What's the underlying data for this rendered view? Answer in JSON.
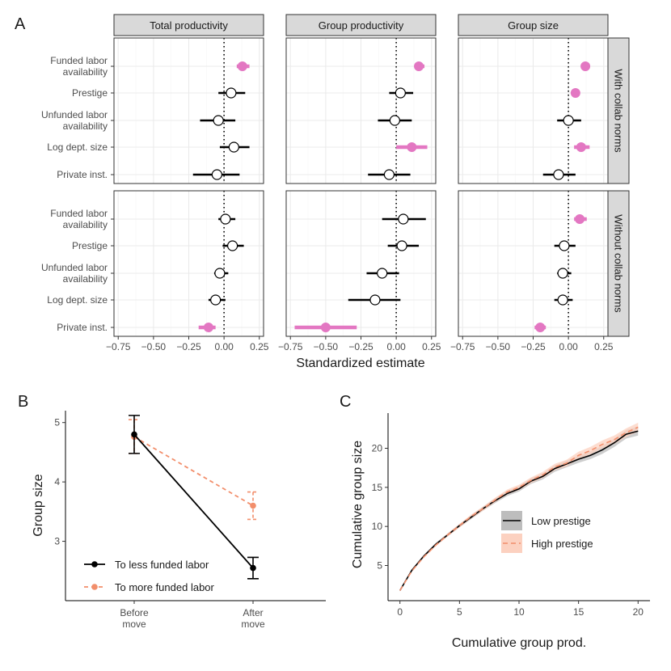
{
  "colors": {
    "significant": "#e377c2",
    "nonsignificant": "#000000",
    "strip": "#d9d9d9",
    "panel_bg": "#ffffff",
    "grid_major": "#ebebeb",
    "grid_minor": "#f5f5f5",
    "less_funded": "#000000",
    "more_funded": "#f28e6b",
    "low_prestige": "#000000",
    "low_prestige_ribbon": "#bdbdbd",
    "high_prestige": "#f28e6b",
    "high_prestige_ribbon": "#fcd1c0"
  },
  "chart_data": [
    {
      "panel_label": "A",
      "type": "scatter",
      "title": "",
      "xlabel": "Standardized estimate",
      "xlim": [
        -0.78,
        0.28
      ],
      "x_ticks": [
        -0.75,
        -0.5,
        -0.25,
        0.0,
        0.25
      ],
      "x_tick_labels": [
        "−0.75",
        "−0.50",
        "−0.25",
        "0.00",
        "0.25"
      ],
      "columns": [
        "Total productivity",
        "Group productivity",
        "Group size"
      ],
      "rows": [
        "With collab norms",
        "Without collab norms"
      ],
      "predictors": [
        {
          "line1": "Funded labor",
          "line2": "availability"
        },
        {
          "line1": "Prestige",
          "line2": ""
        },
        {
          "line1": "Unfunded labor",
          "line2": "availability"
        },
        {
          "line1": "Log dept. size",
          "line2": ""
        },
        {
          "line1": "Private inst.",
          "line2": ""
        }
      ],
      "estimates": [
        [
          [
            {
              "est": 0.13,
              "lo": 0.09,
              "hi": 0.18,
              "sig": true
            },
            {
              "est": 0.05,
              "lo": -0.04,
              "hi": 0.15,
              "sig": false
            },
            {
              "est": -0.04,
              "lo": -0.17,
              "hi": 0.08,
              "sig": false
            },
            {
              "est": 0.07,
              "lo": -0.03,
              "hi": 0.18,
              "sig": false
            },
            {
              "est": -0.05,
              "lo": -0.22,
              "hi": 0.11,
              "sig": false
            }
          ],
          [
            {
              "est": 0.16,
              "lo": 0.13,
              "hi": 0.2,
              "sig": true
            },
            {
              "est": 0.03,
              "lo": -0.05,
              "hi": 0.12,
              "sig": false
            },
            {
              "est": -0.01,
              "lo": -0.13,
              "hi": 0.11,
              "sig": false
            },
            {
              "est": 0.11,
              "lo": 0.0,
              "hi": 0.22,
              "sig": true
            },
            {
              "est": -0.05,
              "lo": -0.2,
              "hi": 0.1,
              "sig": false
            }
          ],
          [
            {
              "est": 0.12,
              "lo": 0.09,
              "hi": 0.15,
              "sig": true
            },
            {
              "est": 0.05,
              "lo": 0.03,
              "hi": 0.08,
              "sig": true
            },
            {
              "est": 0.0,
              "lo": -0.08,
              "hi": 0.09,
              "sig": false
            },
            {
              "est": 0.09,
              "lo": 0.04,
              "hi": 0.15,
              "sig": true
            },
            {
              "est": -0.07,
              "lo": -0.18,
              "hi": 0.05,
              "sig": false
            }
          ]
        ],
        [
          [
            {
              "est": 0.01,
              "lo": -0.04,
              "hi": 0.08,
              "sig": false
            },
            {
              "est": 0.06,
              "lo": -0.01,
              "hi": 0.14,
              "sig": false
            },
            {
              "est": -0.03,
              "lo": -0.07,
              "hi": 0.03,
              "sig": false
            },
            {
              "est": -0.06,
              "lo": -0.11,
              "hi": 0.01,
              "sig": false
            },
            {
              "est": -0.11,
              "lo": -0.18,
              "hi": -0.06,
              "sig": true
            }
          ],
          [
            {
              "est": 0.05,
              "lo": -0.1,
              "hi": 0.21,
              "sig": false
            },
            {
              "est": 0.04,
              "lo": -0.06,
              "hi": 0.16,
              "sig": false
            },
            {
              "est": -0.1,
              "lo": -0.21,
              "hi": 0.02,
              "sig": false
            },
            {
              "est": -0.15,
              "lo": -0.34,
              "hi": 0.03,
              "sig": false
            },
            {
              "est": -0.5,
              "lo": -0.72,
              "hi": -0.28,
              "sig": true
            }
          ],
          [
            {
              "est": 0.08,
              "lo": 0.04,
              "hi": 0.13,
              "sig": true
            },
            {
              "est": -0.03,
              "lo": -0.1,
              "hi": 0.05,
              "sig": false
            },
            {
              "est": -0.04,
              "lo": -0.08,
              "hi": 0.02,
              "sig": false
            },
            {
              "est": -0.04,
              "lo": -0.1,
              "hi": 0.03,
              "sig": false
            },
            {
              "est": -0.2,
              "lo": -0.24,
              "hi": -0.16,
              "sig": true
            }
          ]
        ]
      ]
    },
    {
      "panel_label": "B",
      "type": "line",
      "title": "",
      "xlabel": "",
      "ylabel": "Group size",
      "categories": [
        {
          "line1": "Before",
          "line2": "move"
        },
        {
          "line1": "After",
          "line2": "move"
        }
      ],
      "ylim": [
        2.0,
        5.2
      ],
      "y_ticks": [
        3,
        4,
        5
      ],
      "y_tick_labels": [
        "3",
        "4",
        "5"
      ],
      "series": [
        {
          "name": "To less funded labor",
          "values": [
            4.8,
            2.55
          ],
          "err_lo": [
            4.48,
            2.37
          ],
          "err_hi": [
            5.12,
            2.73
          ]
        },
        {
          "name": "To more funded labor",
          "values": [
            4.76,
            3.6
          ],
          "err_lo": [
            4.48,
            3.37
          ],
          "err_hi": [
            5.05,
            3.83
          ]
        }
      ]
    },
    {
      "panel_label": "C",
      "type": "line",
      "title": "",
      "xlabel": "Cumulative group prod.",
      "ylabel": "Cumulative group size",
      "xlim": [
        -1,
        21
      ],
      "ylim": [
        0.5,
        24.5
      ],
      "x_ticks": [
        0,
        5,
        10,
        15,
        20
      ],
      "x_tick_labels": [
        "0",
        "5",
        "10",
        "15",
        "20"
      ],
      "y_ticks": [
        5,
        10,
        15,
        20
      ],
      "y_tick_labels": [
        "5",
        "10",
        "15",
        "20"
      ],
      "series": [
        {
          "name": "Low prestige",
          "x": [
            0,
            1,
            2,
            3,
            4,
            5,
            6,
            7,
            8,
            9,
            10,
            11,
            12,
            13,
            14,
            15,
            16,
            17,
            18,
            19,
            20
          ],
          "values": [
            1.8,
            4.4,
            6.2,
            7.7,
            8.9,
            10.1,
            11.2,
            12.3,
            13.3,
            14.2,
            14.8,
            15.8,
            16.4,
            17.4,
            18.0,
            18.6,
            19.1,
            19.8,
            20.7,
            21.8,
            22.2
          ],
          "band": 0.5
        },
        {
          "name": "High prestige",
          "x": [
            0,
            1,
            2,
            3,
            4,
            5,
            6,
            7,
            8,
            9,
            10,
            11,
            12,
            13,
            14,
            15,
            16,
            17,
            18,
            19,
            20
          ],
          "values": [
            1.8,
            4.3,
            6.1,
            7.6,
            8.9,
            10.1,
            11.3,
            12.3,
            13.4,
            14.4,
            15.0,
            15.9,
            16.6,
            17.6,
            18.1,
            19.1,
            19.7,
            20.5,
            21.1,
            22.0,
            22.7
          ],
          "band": 0.5
        }
      ]
    }
  ]
}
